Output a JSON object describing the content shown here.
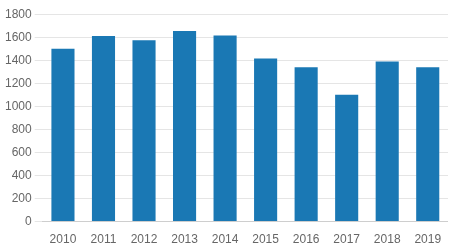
{
  "chart_data": {
    "type": "bar",
    "categories": [
      "2010",
      "2011",
      "2012",
      "2013",
      "2014",
      "2015",
      "2016",
      "2017",
      "2018",
      "2019"
    ],
    "values": [
      1500,
      1610,
      1575,
      1655,
      1615,
      1415,
      1340,
      1100,
      1390,
      1340
    ],
    "color": "#1a78b4",
    "ylim": [
      0,
      1800
    ],
    "yticks": [
      0,
      200,
      400,
      600,
      800,
      1000,
      1200,
      1400,
      1600,
      1800
    ],
    "grid": true
  }
}
